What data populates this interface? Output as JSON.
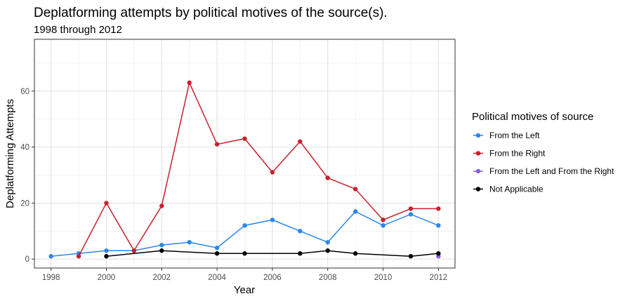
{
  "chart_data": {
    "type": "line",
    "title": "Deplatforming attempts by political motives of the source(s).",
    "subtitle": "1998 through 2012",
    "xlabel": "Year",
    "ylabel": "Deplatforming Attempts",
    "xlim": [
      1997.4,
      2012.6
    ],
    "ylim": [
      -3.2,
      78.5
    ],
    "x_ticks": [
      1998,
      2000,
      2002,
      2004,
      2006,
      2008,
      2010,
      2012
    ],
    "y_ticks": [
      0,
      20,
      40,
      60
    ],
    "grid": true,
    "legend": {
      "title": "Political motives of source",
      "position": "right"
    },
    "series": [
      {
        "name": "From the Left",
        "color": "#2b86f0",
        "points": [
          [
            1998,
            1
          ],
          [
            1999,
            2
          ],
          [
            2000,
            3
          ],
          [
            2001,
            3
          ],
          [
            2002,
            5
          ],
          [
            2003,
            6
          ],
          [
            2004,
            4
          ],
          [
            2005,
            12
          ],
          [
            2006,
            14
          ],
          [
            2007,
            10
          ],
          [
            2008,
            6
          ],
          [
            2009,
            17
          ],
          [
            2010,
            12
          ],
          [
            2011,
            16
          ],
          [
            2012,
            12
          ]
        ]
      },
      {
        "name": "From the Right",
        "color": "#c8202b",
        "points": [
          [
            1999,
            1
          ],
          [
            2000,
            20
          ],
          [
            2001,
            3
          ],
          [
            2002,
            19
          ],
          [
            2003,
            63
          ],
          [
            2004,
            41
          ],
          [
            2005,
            43
          ],
          [
            2006,
            31
          ],
          [
            2007,
            42
          ],
          [
            2008,
            29
          ],
          [
            2009,
            25
          ],
          [
            2010,
            14
          ],
          [
            2011,
            18
          ],
          [
            2012,
            18
          ]
        ]
      },
      {
        "name": "From the Left and From the Right",
        "color": "#8a5fd6",
        "points": [
          [
            2012,
            1
          ]
        ]
      },
      {
        "name": "Not Applicable",
        "color": "#000000",
        "points": [
          [
            2000,
            1
          ],
          [
            2002,
            3
          ],
          [
            2004,
            2
          ],
          [
            2005,
            2
          ],
          [
            2007,
            2
          ],
          [
            2008,
            3
          ],
          [
            2009,
            2
          ],
          [
            2011,
            1
          ],
          [
            2012,
            2
          ]
        ]
      }
    ]
  }
}
